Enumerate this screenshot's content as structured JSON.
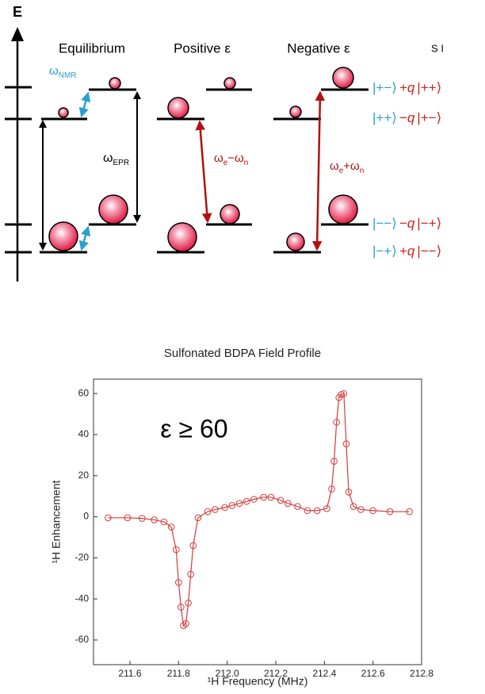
{
  "diagram": {
    "axis_label": "E",
    "columns": [
      "Equilibrium",
      "Positive  ε",
      "Negative  ε"
    ],
    "spin_header": "S I",
    "omega_nmr": [
      "ω",
      "NMR"
    ],
    "omega_epr": [
      "ω",
      "EPR"
    ],
    "omega_minus": [
      "ω",
      "e",
      "−ω",
      "n"
    ],
    "omega_plus": [
      "ω",
      "e",
      "+ω",
      "n"
    ],
    "states": [
      [
        "|+−⟩",
        "+q",
        "|++⟩"
      ],
      [
        "|++⟩",
        "−q",
        "|+−⟩"
      ],
      [
        "|−−⟩",
        "−q",
        "|−+⟩"
      ],
      [
        "|−+⟩",
        "+q",
        "|−−⟩"
      ]
    ]
  },
  "chart_data": {
    "type": "line",
    "title": "Sulfonated BDPA Field Profile",
    "annotation": "ε ≥ 60",
    "x_label": "¹H Frequency (MHz)",
    "y_label": "¹H Enhancement",
    "x": [
      211.51,
      211.59,
      211.65,
      211.7,
      211.74,
      211.77,
      211.79,
      211.8,
      211.81,
      211.82,
      211.83,
      211.84,
      211.85,
      211.86,
      211.88,
      211.92,
      211.95,
      211.99,
      212.02,
      212.05,
      212.08,
      212.11,
      212.15,
      212.18,
      212.22,
      212.25,
      212.29,
      212.33,
      212.37,
      212.41,
      212.43,
      212.44,
      212.45,
      212.46,
      212.47,
      212.48,
      212.49,
      212.5,
      212.52,
      212.55,
      212.6,
      212.67,
      212.75
    ],
    "values": [
      -0.5,
      -0.5,
      -0.8,
      -1.5,
      -2.5,
      -5,
      -16,
      -32,
      -44,
      -53,
      -52,
      -42,
      -28,
      -14,
      -0.5,
      2.5,
      3.5,
      4.5,
      5.5,
      6.5,
      7.5,
      8.5,
      9.5,
      9.5,
      8,
      6.5,
      5,
      3,
      3,
      4,
      13.5,
      27,
      46,
      58,
      59.5,
      60,
      35.5,
      12,
      5,
      3.5,
      3,
      2.5,
      2.5
    ],
    "color": "#d23c3c",
    "xlim": [
      211.45,
      212.8
    ],
    "xticks": [
      211.6,
      211.8,
      {
        "value": 212,
        "label": "212.0"
      },
      212.2,
      212.4,
      212.6,
      212.8
    ],
    "ylim": [
      -72,
      67
    ],
    "yticks": [
      -60,
      -40,
      -20,
      0,
      20,
      40,
      60
    ]
  }
}
